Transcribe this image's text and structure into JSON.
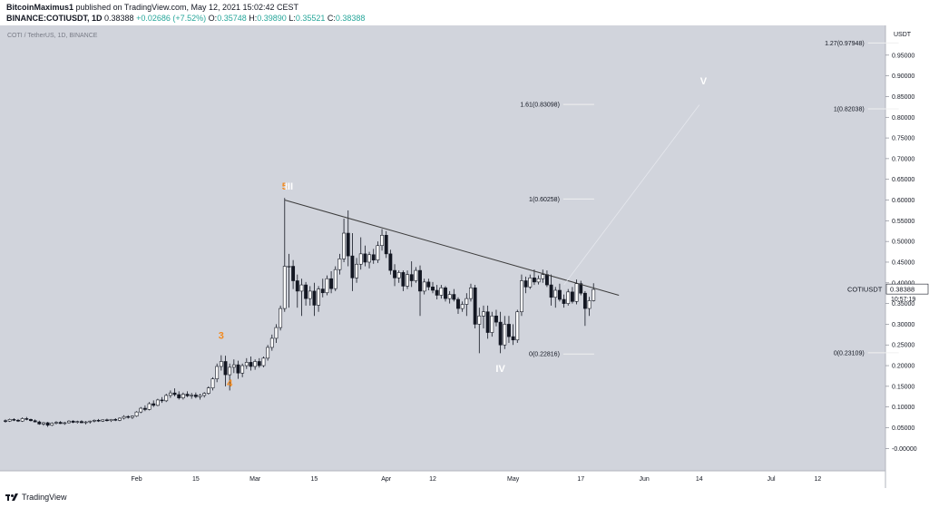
{
  "header": {
    "publisher": "BitcoinMaximus1",
    "published_text": "published on TradingView.com, May 12, 2021 15:02:42 CEST",
    "symbol": "BINANCE:COTIUSDT, 1D",
    "last": "0.38388",
    "change": "+0.02686 (+7.52%)",
    "o_label": "O:",
    "o": "0.35748",
    "h_label": "H:",
    "h": "0.39890",
    "l_label": "L:",
    "l": "0.35521",
    "c_label": "C:",
    "c": "0.38388"
  },
  "footer": {
    "brand": "TradingView"
  },
  "price_tag": {
    "symbol": "COTIUSDT",
    "price": "0.38388",
    "countdown": "10:57:19"
  },
  "colors": {
    "background": "#d1d4dc",
    "axis_bg": "#ffffff",
    "candle_up": "#ffffff",
    "candle_down": "#131722",
    "trendline": "#3c3c3c",
    "wave_orange": "#f28a1f",
    "wave_white": "#ffffff"
  },
  "chart_data": {
    "type": "candlestick",
    "title": "COTI / TetherUS, 1D, BINANCE",
    "y_axis": {
      "unit": "USDT",
      "ticks": [
        "0.95000",
        "0.90000",
        "0.85000",
        "0.80000",
        "0.75000",
        "0.70000",
        "0.65000",
        "0.60000",
        "0.55000",
        "0.50000",
        "0.45000",
        "0.40000",
        "0.35000",
        "0.30000",
        "0.25000",
        "0.20000",
        "0.15000",
        "0.10000",
        "0.05000",
        "-0.00000"
      ],
      "range": [
        -0.03,
        1.0
      ]
    },
    "x_axis": {
      "ticks": [
        "Feb",
        "15",
        "Mar",
        "15",
        "Apr",
        "12",
        "May",
        "17",
        "Jun",
        "14",
        "Jul",
        "12"
      ],
      "range": [
        "2021-01-01",
        "2021-07-28"
      ]
    },
    "candles": [
      [
        "2021-01-01",
        0.067,
        0.07,
        0.062,
        0.066
      ],
      [
        "2021-01-02",
        0.066,
        0.072,
        0.064,
        0.07
      ],
      [
        "2021-01-03",
        0.07,
        0.073,
        0.066,
        0.068
      ],
      [
        "2021-01-04",
        0.068,
        0.071,
        0.064,
        0.066
      ],
      [
        "2021-01-05",
        0.066,
        0.075,
        0.064,
        0.072
      ],
      [
        "2021-01-06",
        0.072,
        0.076,
        0.068,
        0.07
      ],
      [
        "2021-01-07",
        0.07,
        0.072,
        0.065,
        0.067
      ],
      [
        "2021-01-08",
        0.067,
        0.07,
        0.063,
        0.064
      ],
      [
        "2021-01-09",
        0.064,
        0.067,
        0.057,
        0.059
      ],
      [
        "2021-01-10",
        0.059,
        0.064,
        0.055,
        0.062
      ],
      [
        "2021-01-11",
        0.062,
        0.064,
        0.052,
        0.056
      ],
      [
        "2021-01-12",
        0.056,
        0.063,
        0.054,
        0.061
      ],
      [
        "2021-01-13",
        0.061,
        0.066,
        0.058,
        0.063
      ],
      [
        "2021-01-14",
        0.063,
        0.066,
        0.059,
        0.06
      ],
      [
        "2021-01-15",
        0.06,
        0.064,
        0.057,
        0.062
      ],
      [
        "2021-01-16",
        0.062,
        0.068,
        0.06,
        0.066
      ],
      [
        "2021-01-17",
        0.066,
        0.068,
        0.061,
        0.063
      ],
      [
        "2021-01-18",
        0.063,
        0.067,
        0.06,
        0.065
      ],
      [
        "2021-01-19",
        0.065,
        0.068,
        0.061,
        0.062
      ],
      [
        "2021-01-20",
        0.062,
        0.066,
        0.058,
        0.064
      ],
      [
        "2021-01-21",
        0.064,
        0.067,
        0.06,
        0.066
      ],
      [
        "2021-01-22",
        0.066,
        0.07,
        0.063,
        0.068
      ],
      [
        "2021-01-23",
        0.068,
        0.071,
        0.064,
        0.066
      ],
      [
        "2021-01-24",
        0.066,
        0.07,
        0.064,
        0.069
      ],
      [
        "2021-01-25",
        0.069,
        0.072,
        0.065,
        0.067
      ],
      [
        "2021-01-26",
        0.067,
        0.071,
        0.064,
        0.07
      ],
      [
        "2021-01-27",
        0.07,
        0.073,
        0.066,
        0.068
      ],
      [
        "2021-01-28",
        0.068,
        0.075,
        0.066,
        0.073
      ],
      [
        "2021-01-29",
        0.073,
        0.08,
        0.07,
        0.077
      ],
      [
        "2021-01-30",
        0.077,
        0.08,
        0.072,
        0.075
      ],
      [
        "2021-01-31",
        0.075,
        0.079,
        0.071,
        0.078
      ],
      [
        "2021-02-01",
        0.078,
        0.09,
        0.076,
        0.088
      ],
      [
        "2021-02-02",
        0.088,
        0.1,
        0.085,
        0.097
      ],
      [
        "2021-02-03",
        0.097,
        0.104,
        0.09,
        0.094
      ],
      [
        "2021-02-04",
        0.094,
        0.112,
        0.092,
        0.108
      ],
      [
        "2021-02-05",
        0.108,
        0.116,
        0.1,
        0.104
      ],
      [
        "2021-02-06",
        0.104,
        0.12,
        0.102,
        0.117
      ],
      [
        "2021-02-07",
        0.117,
        0.124,
        0.11,
        0.115
      ],
      [
        "2021-02-08",
        0.115,
        0.132,
        0.112,
        0.128
      ],
      [
        "2021-02-09",
        0.128,
        0.14,
        0.122,
        0.134
      ],
      [
        "2021-02-10",
        0.134,
        0.145,
        0.126,
        0.13
      ],
      [
        "2021-02-11",
        0.13,
        0.138,
        0.118,
        0.122
      ],
      [
        "2021-02-12",
        0.122,
        0.135,
        0.118,
        0.131
      ],
      [
        "2021-02-13",
        0.131,
        0.138,
        0.124,
        0.127
      ],
      [
        "2021-02-14",
        0.127,
        0.134,
        0.12,
        0.129
      ],
      [
        "2021-02-15",
        0.129,
        0.135,
        0.121,
        0.125
      ],
      [
        "2021-02-16",
        0.125,
        0.132,
        0.118,
        0.128
      ],
      [
        "2021-02-17",
        0.128,
        0.136,
        0.123,
        0.133
      ],
      [
        "2021-02-18",
        0.133,
        0.15,
        0.13,
        0.146
      ],
      [
        "2021-02-19",
        0.146,
        0.172,
        0.14,
        0.168
      ],
      [
        "2021-02-20",
        0.168,
        0.205,
        0.16,
        0.198
      ],
      [
        "2021-02-21",
        0.198,
        0.225,
        0.188,
        0.21
      ],
      [
        "2021-02-22",
        0.21,
        0.224,
        0.15,
        0.178
      ],
      [
        "2021-02-23",
        0.178,
        0.205,
        0.14,
        0.196
      ],
      [
        "2021-02-24",
        0.196,
        0.215,
        0.182,
        0.202
      ],
      [
        "2021-02-25",
        0.202,
        0.212,
        0.168,
        0.182
      ],
      [
        "2021-02-26",
        0.182,
        0.205,
        0.172,
        0.2
      ],
      [
        "2021-02-27",
        0.2,
        0.218,
        0.192,
        0.208
      ],
      [
        "2021-02-28",
        0.208,
        0.222,
        0.188,
        0.198
      ],
      [
        "2021-03-01",
        0.198,
        0.215,
        0.19,
        0.21
      ],
      [
        "2021-03-02",
        0.21,
        0.218,
        0.195,
        0.2
      ],
      [
        "2021-03-03",
        0.2,
        0.222,
        0.196,
        0.218
      ],
      [
        "2021-03-04",
        0.218,
        0.25,
        0.212,
        0.244
      ],
      [
        "2021-03-05",
        0.244,
        0.275,
        0.236,
        0.266
      ],
      [
        "2021-03-06",
        0.266,
        0.3,
        0.255,
        0.292
      ],
      [
        "2021-03-07",
        0.292,
        0.345,
        0.285,
        0.338
      ],
      [
        "2021-03-08",
        0.338,
        0.605,
        0.33,
        0.44
      ],
      [
        "2021-03-09",
        0.44,
        0.47,
        0.34,
        0.44
      ],
      [
        "2021-03-10",
        0.44,
        0.455,
        0.385,
        0.405
      ],
      [
        "2021-03-11",
        0.405,
        0.42,
        0.34,
        0.38
      ],
      [
        "2021-03-12",
        0.38,
        0.41,
        0.32,
        0.395
      ],
      [
        "2021-03-13",
        0.395,
        0.402,
        0.345,
        0.362
      ],
      [
        "2021-03-14",
        0.362,
        0.392,
        0.345,
        0.38
      ],
      [
        "2021-03-15",
        0.38,
        0.4,
        0.32,
        0.346
      ],
      [
        "2021-03-16",
        0.346,
        0.392,
        0.33,
        0.385
      ],
      [
        "2021-03-17",
        0.385,
        0.41,
        0.365,
        0.376
      ],
      [
        "2021-03-18",
        0.376,
        0.418,
        0.37,
        0.41
      ],
      [
        "2021-03-19",
        0.41,
        0.428,
        0.375,
        0.386
      ],
      [
        "2021-03-20",
        0.386,
        0.44,
        0.38,
        0.432
      ],
      [
        "2021-03-21",
        0.432,
        0.47,
        0.42,
        0.458
      ],
      [
        "2021-03-22",
        0.458,
        0.555,
        0.45,
        0.52
      ],
      [
        "2021-03-23",
        0.52,
        0.575,
        0.44,
        0.465
      ],
      [
        "2021-03-24",
        0.465,
        0.52,
        0.38,
        0.412
      ],
      [
        "2021-03-25",
        0.412,
        0.46,
        0.4,
        0.445
      ],
      [
        "2021-03-26",
        0.445,
        0.51,
        0.432,
        0.47
      ],
      [
        "2021-03-27",
        0.47,
        0.49,
        0.44,
        0.45
      ],
      [
        "2021-03-28",
        0.45,
        0.475,
        0.435,
        0.468
      ],
      [
        "2021-03-29",
        0.468,
        0.482,
        0.446,
        0.455
      ],
      [
        "2021-03-30",
        0.455,
        0.5,
        0.448,
        0.49
      ],
      [
        "2021-03-31",
        0.49,
        0.53,
        0.478,
        0.515
      ],
      [
        "2021-04-01",
        0.515,
        0.525,
        0.46,
        0.47
      ],
      [
        "2021-04-02",
        0.47,
        0.48,
        0.42,
        0.43
      ],
      [
        "2021-04-03",
        0.43,
        0.445,
        0.392,
        0.412
      ],
      [
        "2021-04-04",
        0.412,
        0.43,
        0.4,
        0.425
      ],
      [
        "2021-04-05",
        0.425,
        0.43,
        0.38,
        0.392
      ],
      [
        "2021-04-06",
        0.392,
        0.43,
        0.385,
        0.42
      ],
      [
        "2021-04-07",
        0.42,
        0.452,
        0.39,
        0.405
      ],
      [
        "2021-04-08",
        0.405,
        0.438,
        0.4,
        0.43
      ],
      [
        "2021-04-09",
        0.43,
        0.442,
        0.32,
        0.38
      ],
      [
        "2021-04-10",
        0.38,
        0.41,
        0.372,
        0.402
      ],
      [
        "2021-04-11",
        0.402,
        0.41,
        0.382,
        0.39
      ],
      [
        "2021-04-12",
        0.39,
        0.402,
        0.375,
        0.382
      ],
      [
        "2021-04-13",
        0.382,
        0.395,
        0.36,
        0.37
      ],
      [
        "2021-04-14",
        0.37,
        0.395,
        0.362,
        0.388
      ],
      [
        "2021-04-15",
        0.388,
        0.392,
        0.355,
        0.362
      ],
      [
        "2021-04-16",
        0.362,
        0.38,
        0.35,
        0.372
      ],
      [
        "2021-04-17",
        0.372,
        0.385,
        0.355,
        0.36
      ],
      [
        "2021-04-18",
        0.36,
        0.365,
        0.325,
        0.338
      ],
      [
        "2021-04-19",
        0.338,
        0.355,
        0.33,
        0.348
      ],
      [
        "2021-04-20",
        0.348,
        0.375,
        0.32,
        0.362
      ],
      [
        "2021-04-21",
        0.362,
        0.398,
        0.355,
        0.388
      ],
      [
        "2021-04-22",
        0.388,
        0.395,
        0.29,
        0.3
      ],
      [
        "2021-04-23",
        0.3,
        0.34,
        0.23,
        0.32
      ],
      [
        "2021-04-24",
        0.32,
        0.345,
        0.29,
        0.33
      ],
      [
        "2021-04-25",
        0.33,
        0.345,
        0.265,
        0.28
      ],
      [
        "2021-04-26",
        0.28,
        0.33,
        0.27,
        0.32
      ],
      [
        "2021-04-27",
        0.32,
        0.335,
        0.295,
        0.305
      ],
      [
        "2021-04-28",
        0.305,
        0.33,
        0.23,
        0.25
      ],
      [
        "2021-04-29",
        0.25,
        0.32,
        0.24,
        0.3
      ],
      [
        "2021-04-30",
        0.3,
        0.32,
        0.255,
        0.27
      ],
      [
        "2021-05-01",
        0.27,
        0.3,
        0.25,
        0.262
      ],
      [
        "2021-05-02",
        0.262,
        0.335,
        0.255,
        0.33
      ],
      [
        "2021-05-03",
        0.33,
        0.42,
        0.32,
        0.405
      ],
      [
        "2021-05-04",
        0.405,
        0.415,
        0.375,
        0.39
      ],
      [
        "2021-05-05",
        0.39,
        0.42,
        0.385,
        0.412
      ],
      [
        "2021-05-06",
        0.412,
        0.432,
        0.395,
        0.402
      ],
      [
        "2021-05-07",
        0.402,
        0.418,
        0.396,
        0.41
      ],
      [
        "2021-05-08",
        0.41,
        0.432,
        0.4,
        0.42
      ],
      [
        "2021-05-09",
        0.42,
        0.43,
        0.39,
        0.395
      ],
      [
        "2021-05-10",
        0.395,
        0.42,
        0.345,
        0.365
      ],
      [
        "2021-05-11",
        0.365,
        0.39,
        0.34,
        0.382
      ],
      [
        "2021-05-12",
        0.382,
        0.398,
        0.355,
        0.36
      ],
      [
        "2021-05-13",
        0.36,
        0.372,
        0.34,
        0.35
      ],
      [
        "2021-05-14",
        0.35,
        0.385,
        0.345,
        0.378
      ],
      [
        "2021-05-15",
        0.378,
        0.39,
        0.35,
        0.355
      ],
      [
        "2021-05-16",
        0.355,
        0.408,
        0.348,
        0.398
      ],
      [
        "2021-05-17",
        0.398,
        0.405,
        0.37,
        0.375
      ],
      [
        "2021-05-18",
        0.375,
        0.38,
        0.296,
        0.338
      ],
      [
        "2021-05-19",
        0.338,
        0.366,
        0.32,
        0.357
      ],
      [
        "2021-05-20",
        0.357,
        0.399,
        0.355,
        0.384
      ]
    ],
    "trendline": [
      [
        "2021-03-08",
        0.6
      ],
      [
        "2021-05-26",
        0.37
      ]
    ],
    "projection": [
      [
        "2021-05-13",
        0.395
      ],
      [
        "2021-06-14",
        0.83
      ]
    ],
    "wave_labels": [
      {
        "text": "5",
        "date": "2021-03-08",
        "price": 0.625,
        "color": "orange"
      },
      {
        "text": "III",
        "date": "2021-03-09",
        "price": 0.625,
        "color": "white"
      },
      {
        "text": "3",
        "date": "2021-02-21",
        "price": 0.265,
        "color": "orange"
      },
      {
        "text": "4",
        "date": "2021-02-23",
        "price": 0.15,
        "color": "orange"
      },
      {
        "text": "IV",
        "date": "2021-04-28",
        "price": 0.185,
        "color": "white"
      },
      {
        "text": "V",
        "date": "2021-06-15",
        "price": 0.88,
        "color": "white"
      }
    ],
    "fib_levels": [
      {
        "text": "1.61(0.83098)",
        "date": "2021-05-12",
        "price": 0.83098
      },
      {
        "text": "1(0.60258)",
        "date": "2021-05-12",
        "price": 0.60258
      },
      {
        "text": "0(0.22816)",
        "date": "2021-05-12",
        "price": 0.22816
      },
      {
        "text": "1.27(0.97948)",
        "date": "2021-07-23",
        "price": 0.97948
      },
      {
        "text": "1(0.82038)",
        "date": "2021-07-23",
        "price": 0.82038
      },
      {
        "text": "0(0.23109)",
        "date": "2021-07-23",
        "price": 0.23109
      }
    ]
  }
}
